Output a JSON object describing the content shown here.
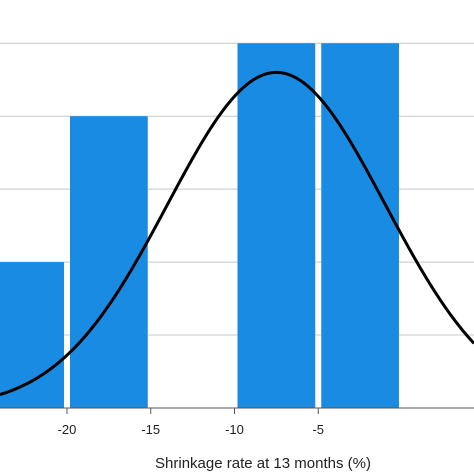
{
  "chart_data": {
    "type": "histogram",
    "title": "",
    "xlabel": "Shrinkage rate at 13 months (%)",
    "ylabel": "",
    "xlim": [
      -24.0,
      4.3
    ],
    "ylim": [
      0,
      5.25
    ],
    "x_ticks": [
      -20,
      -15,
      -10,
      -5
    ],
    "x_tick_labels": [
      "-20",
      "-15",
      "-10",
      "-5"
    ],
    "y_gridlines": [
      1,
      2,
      3,
      4,
      5
    ],
    "bars": [
      {
        "x0": -25,
        "x1": -20,
        "count": 2
      },
      {
        "x0": -20,
        "x1": -15,
        "count": 4
      },
      {
        "x0": -15,
        "x1": -10,
        "count": 0
      },
      {
        "x0": -10,
        "x1": -5,
        "count": 5
      },
      {
        "x0": -5,
        "x1": 0,
        "count": 5
      }
    ],
    "normal_curve": {
      "mean": -7.5,
      "sd": 6.5,
      "peak": 4.6
    },
    "grid": true,
    "colors": {
      "bar": "#1a8be3",
      "curve": "#000000",
      "grid": "#c8c8c8",
      "axis": "#555555"
    }
  }
}
